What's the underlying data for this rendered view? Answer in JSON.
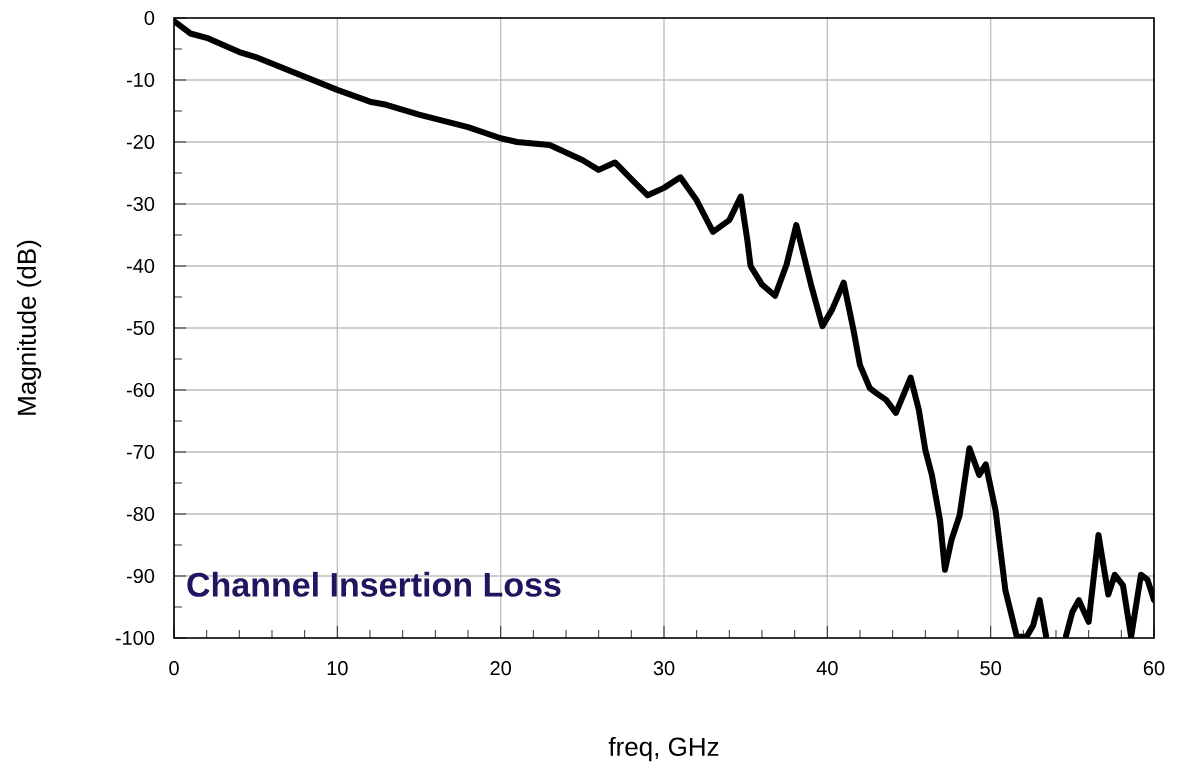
{
  "chart_data": {
    "type": "line",
    "xlabel": "freq, GHz",
    "ylabel": "Magnitude (dB)",
    "annotations": [
      "Channel Insertion Loss"
    ],
    "x": [
      0,
      1,
      2,
      4,
      5,
      10,
      12,
      13,
      15,
      18,
      20,
      21,
      23,
      25,
      26,
      27,
      28,
      29,
      30,
      31,
      32,
      33,
      34,
      34.7,
      35.1,
      35.3,
      36,
      36.8,
      37.5,
      38.1,
      39,
      39.7,
      40.3,
      41,
      41.6,
      42,
      42.6,
      43,
      43.6,
      44.2,
      45.1,
      45.6,
      46,
      46.4,
      46.9,
      47.2,
      47.6,
      48.1,
      48.7,
      49.3,
      49.7,
      50.3,
      50.9,
      51.2,
      51.6,
      52.2,
      52.6,
      53,
      53.4,
      54,
      54.6,
      55,
      55.4,
      56,
      56.6,
      57.2,
      57.6,
      58.1,
      58.6,
      59.2,
      59.6,
      60
    ],
    "series": [
      {
        "color": "#000000",
        "values": [
          -0.5,
          -2.5,
          -3.2,
          -5.5,
          -6.3,
          -11.6,
          -13.5,
          -14,
          -15.6,
          -17.6,
          -19.4,
          -20,
          -20.5,
          -22.9,
          -24.5,
          -23.3,
          -26,
          -28.6,
          -27.4,
          -25.7,
          -29.4,
          -34.5,
          -32.6,
          -28.8,
          -35.8,
          -40,
          -43,
          -44.8,
          -39.8,
          -33.4,
          -43,
          -49.7,
          -47,
          -42.7,
          -50.3,
          -56,
          -59.7,
          -60.5,
          -61.6,
          -63.7,
          -58,
          -63.2,
          -69.7,
          -73.7,
          -81,
          -89,
          -84.2,
          -80.2,
          -69.4,
          -73.7,
          -72,
          -79.4,
          -92.3,
          -95.5,
          -99.8,
          -99.8,
          -98,
          -93.9,
          -99.8,
          null,
          -99.8,
          -95.8,
          -93.9,
          -97.4,
          -83.4,
          -93,
          -89.8,
          -91.5,
          -99.8,
          -89.8,
          -90.6,
          -93.9
        ]
      }
    ],
    "xlim": [
      0,
      60
    ],
    "ylim": [
      -100,
      0
    ],
    "xticks": [
      0,
      10,
      20,
      30,
      40,
      50,
      60
    ],
    "yticks": [
      -100,
      -90,
      -80,
      -70,
      -60,
      -50,
      -40,
      -30,
      -20,
      -10,
      0
    ],
    "grid": true,
    "marker": "none",
    "line_style": "solid"
  }
}
